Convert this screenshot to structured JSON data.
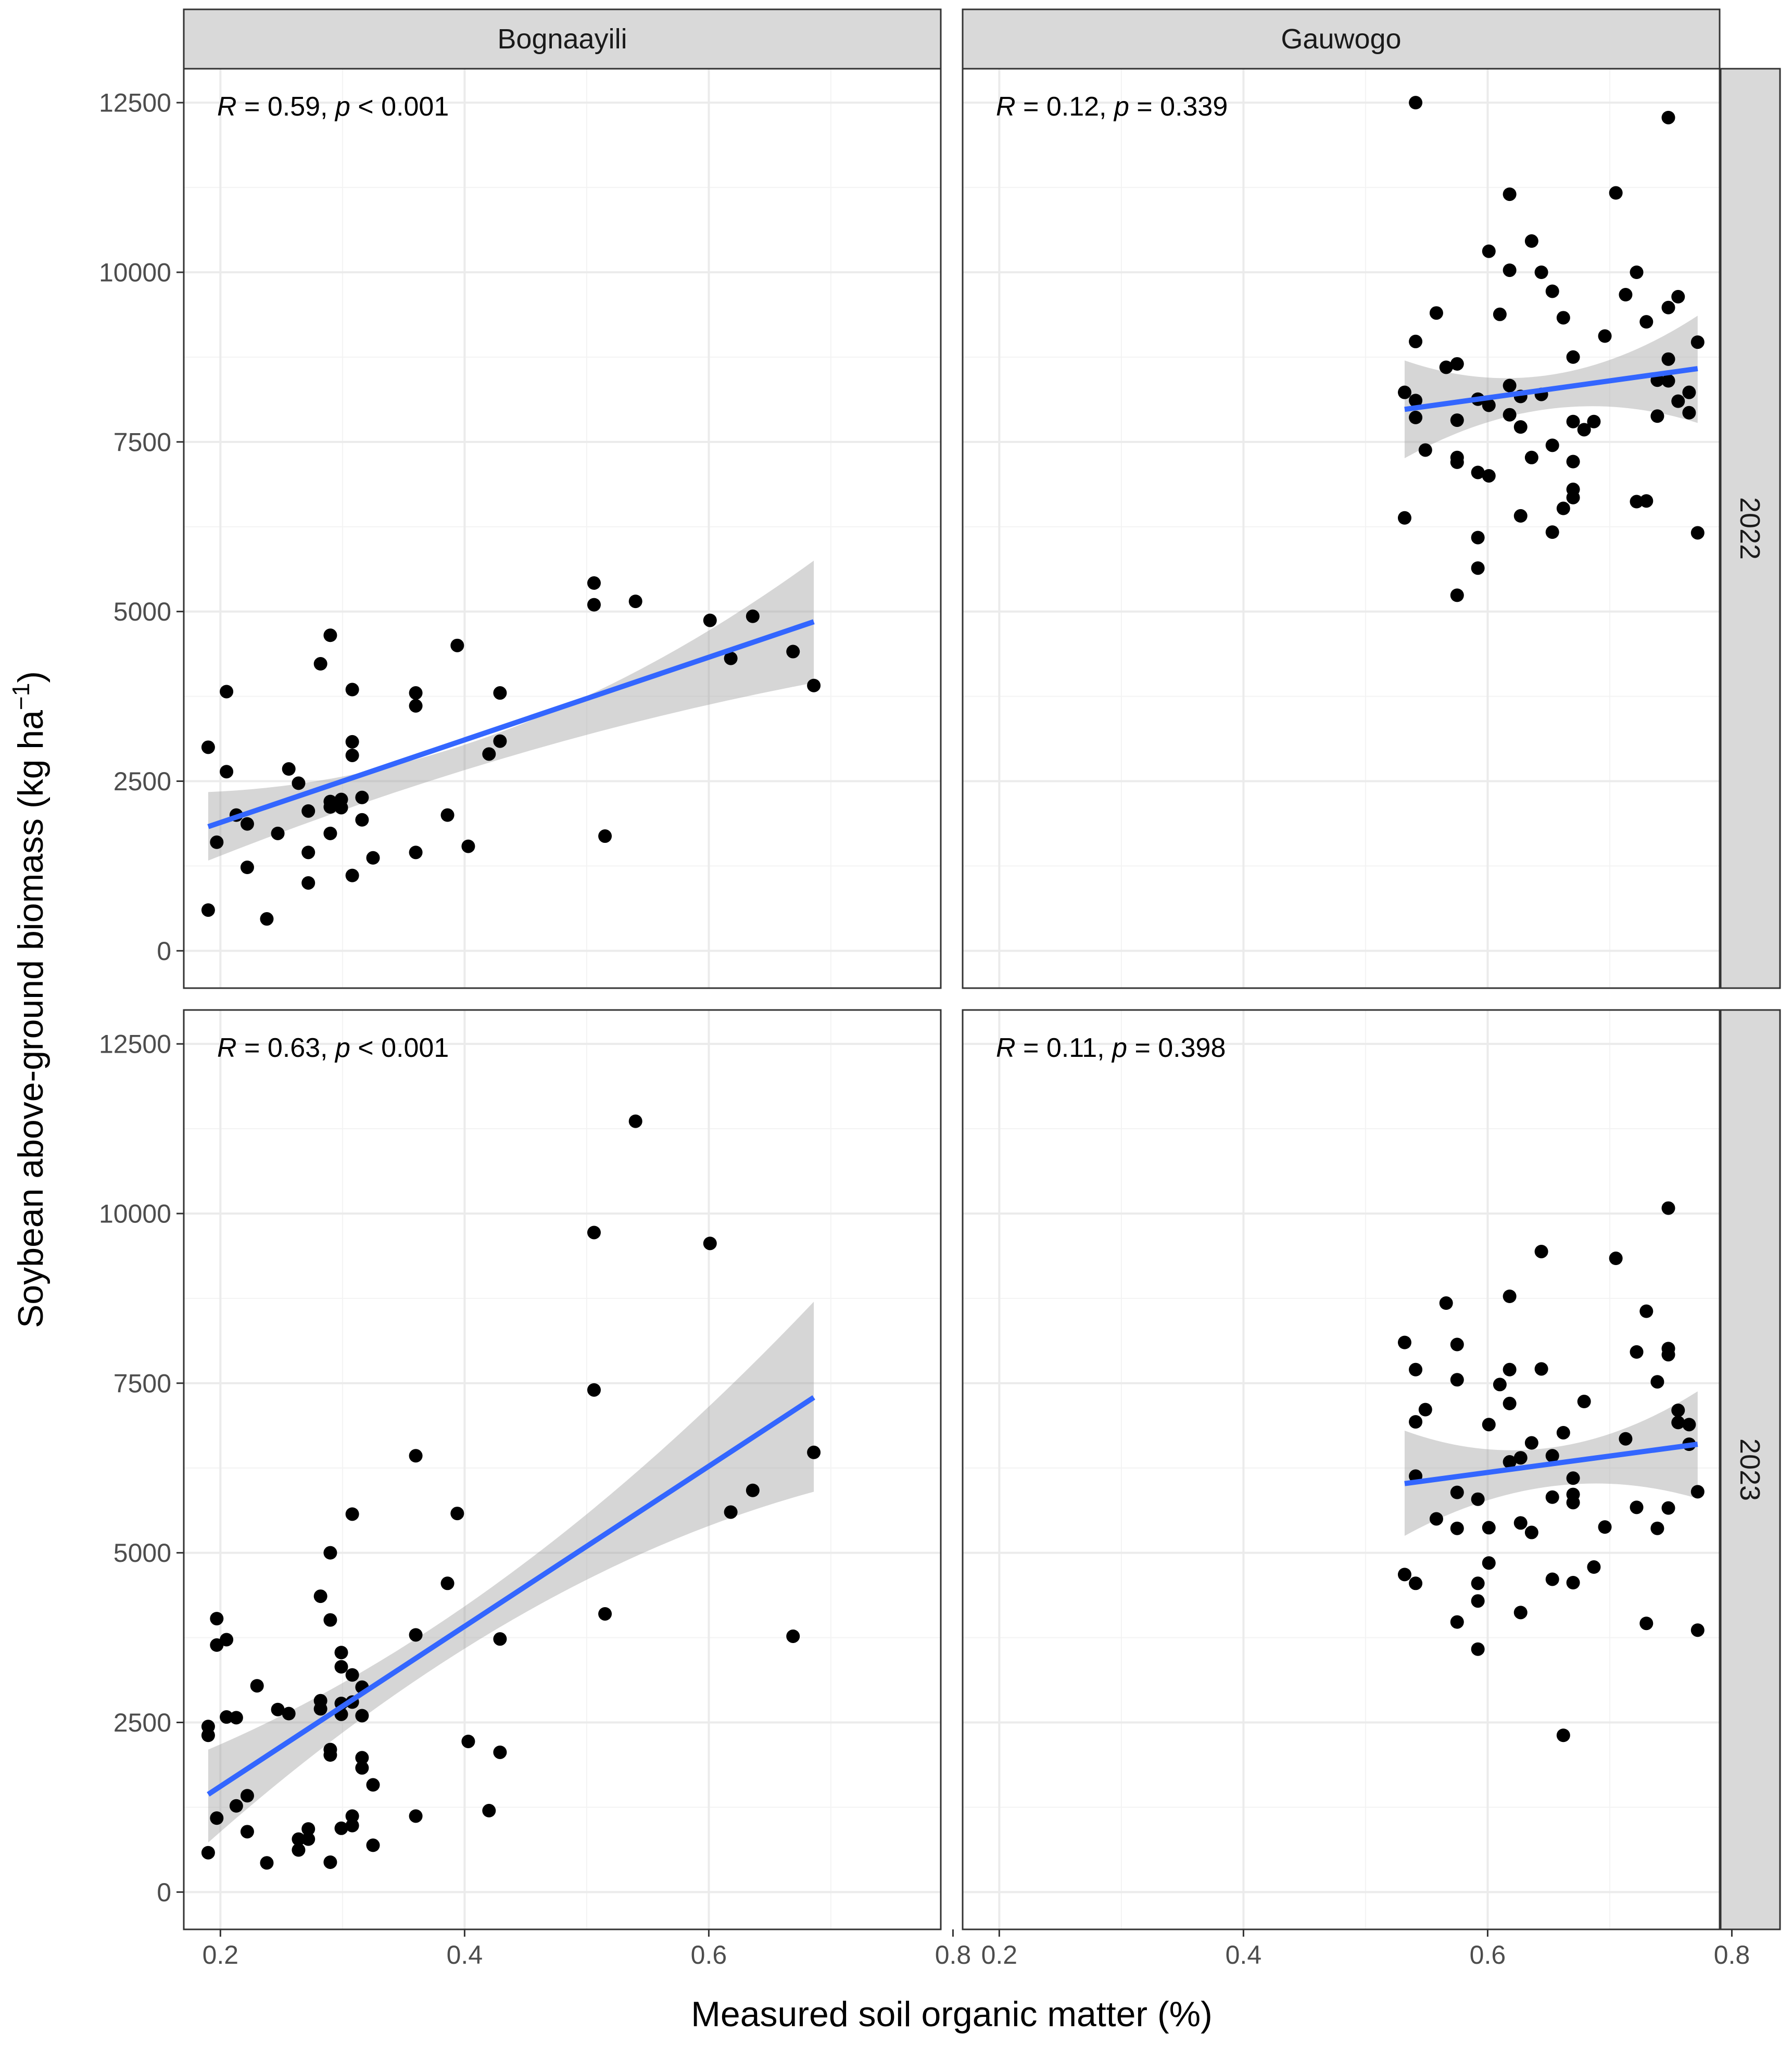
{
  "chart_data": {
    "type": "scatter",
    "xlabel": "Measured soil organic matter (%)",
    "ylabel_main": "Soybean above-ground biomass (kg ha",
    "ylabel_sup": "−1",
    "ylabel_close": ")",
    "xlim": [
      0.17,
      0.79
    ],
    "ylim": [
      -550,
      13000
    ],
    "x_ticks": [
      0.2,
      0.4,
      0.6,
      0.8
    ],
    "x_tick_labels": [
      "0.2",
      "0.4",
      "0.6",
      "0.8"
    ],
    "y_ticks": [
      0,
      2500,
      5000,
      7500,
      10000,
      12500
    ],
    "y_tick_labels": [
      "0",
      "2500",
      "5000",
      "7500",
      "10000",
      "12500"
    ],
    "columns": [
      "Bognaayili",
      "Gauwogo"
    ],
    "rows": [
      "2022",
      "2023"
    ],
    "colors": {
      "fit_line": "#3366FF",
      "points": "#000000",
      "band": "#999999",
      "strip": "#D9D9D9"
    },
    "panels": [
      {
        "site": "Bognaayili",
        "year": "2022",
        "stat": {
          "R": "0.59",
          "p_sign": "<",
          "p": "0.001"
        },
        "fit": {
          "x0": 0.19,
          "y0": 1830,
          "x1": 0.686,
          "y1": 4850
        },
        "band": {
          "lo0": 1330,
          "hi0": 2340,
          "loMid": 2870,
          "hiMid": 3280,
          "lo1": 3950,
          "hi1": 5750
        },
        "points": [
          [
            0.19,
            3000
          ],
          [
            0.197,
            1600
          ],
          [
            0.205,
            3820
          ],
          [
            0.205,
            2640
          ],
          [
            0.213,
            2000
          ],
          [
            0.222,
            1870
          ],
          [
            0.222,
            1230
          ],
          [
            0.238,
            470
          ],
          [
            0.247,
            1730
          ],
          [
            0.256,
            2680
          ],
          [
            0.264,
            2470
          ],
          [
            0.272,
            2060
          ],
          [
            0.272,
            1450
          ],
          [
            0.272,
            1000
          ],
          [
            0.282,
            4230
          ],
          [
            0.29,
            4650
          ],
          [
            0.29,
            2200
          ],
          [
            0.29,
            2120
          ],
          [
            0.29,
            1730
          ],
          [
            0.299,
            2230
          ],
          [
            0.299,
            2110
          ],
          [
            0.308,
            3850
          ],
          [
            0.308,
            3080
          ],
          [
            0.308,
            2880
          ],
          [
            0.308,
            1110
          ],
          [
            0.316,
            1930
          ],
          [
            0.316,
            2260
          ],
          [
            0.325,
            1370
          ],
          [
            0.36,
            3800
          ],
          [
            0.36,
            3610
          ],
          [
            0.36,
            1450
          ],
          [
            0.386,
            2000
          ],
          [
            0.394,
            4500
          ],
          [
            0.403,
            1540
          ],
          [
            0.42,
            2900
          ],
          [
            0.429,
            3800
          ],
          [
            0.429,
            3090
          ],
          [
            0.506,
            5420
          ],
          [
            0.506,
            5100
          ],
          [
            0.515,
            1690
          ],
          [
            0.54,
            5150
          ],
          [
            0.601,
            4870
          ],
          [
            0.618,
            4310
          ],
          [
            0.636,
            4930
          ],
          [
            0.669,
            4410
          ],
          [
            0.686,
            3910
          ],
          [
            0.19,
            600
          ]
        ]
      },
      {
        "site": "Gauwogo",
        "year": "2022",
        "stat": {
          "R": "0.12",
          "p_sign": "=",
          "p": "0.339"
        },
        "fit": {
          "x0": 0.532,
          "y0": 7980,
          "x1": 0.772,
          "y1": 8580
        },
        "band": {
          "lo0": 7260,
          "hi0": 8700,
          "loMid": 7990,
          "hiMid": 8490,
          "lo1": 7780,
          "hi1": 9360
        },
        "points": [
          [
            0.532,
            6380
          ],
          [
            0.532,
            8230
          ],
          [
            0.541,
            8980
          ],
          [
            0.541,
            8110
          ],
          [
            0.541,
            7860
          ],
          [
            0.541,
            12500
          ],
          [
            0.549,
            7380
          ],
          [
            0.558,
            9400
          ],
          [
            0.566,
            8600
          ],
          [
            0.575,
            8650
          ],
          [
            0.575,
            7270
          ],
          [
            0.575,
            7200
          ],
          [
            0.575,
            5240
          ],
          [
            0.575,
            7820
          ],
          [
            0.592,
            8130
          ],
          [
            0.592,
            7050
          ],
          [
            0.592,
            6090
          ],
          [
            0.592,
            5640
          ],
          [
            0.601,
            10310
          ],
          [
            0.601,
            8040
          ],
          [
            0.601,
            7000
          ],
          [
            0.61,
            9380
          ],
          [
            0.618,
            11150
          ],
          [
            0.618,
            10030
          ],
          [
            0.618,
            8330
          ],
          [
            0.618,
            7900
          ],
          [
            0.627,
            8170
          ],
          [
            0.627,
            7720
          ],
          [
            0.627,
            6410
          ],
          [
            0.636,
            10460
          ],
          [
            0.636,
            7270
          ],
          [
            0.644,
            10000
          ],
          [
            0.644,
            8200
          ],
          [
            0.653,
            9720
          ],
          [
            0.653,
            7450
          ],
          [
            0.653,
            6170
          ],
          [
            0.662,
            9330
          ],
          [
            0.662,
            6520
          ],
          [
            0.67,
            8750
          ],
          [
            0.67,
            6800
          ],
          [
            0.67,
            7800
          ],
          [
            0.67,
            7210
          ],
          [
            0.67,
            6680
          ],
          [
            0.679,
            7680
          ],
          [
            0.687,
            7800
          ],
          [
            0.696,
            9060
          ],
          [
            0.705,
            11170
          ],
          [
            0.713,
            9670
          ],
          [
            0.722,
            10000
          ],
          [
            0.722,
            6620
          ],
          [
            0.73,
            9270
          ],
          [
            0.73,
            6630
          ],
          [
            0.739,
            8410
          ],
          [
            0.739,
            7880
          ],
          [
            0.748,
            12280
          ],
          [
            0.748,
            9480
          ],
          [
            0.748,
            8720
          ],
          [
            0.748,
            8400
          ],
          [
            0.756,
            9640
          ],
          [
            0.756,
            8100
          ],
          [
            0.765,
            8230
          ],
          [
            0.765,
            7930
          ],
          [
            0.772,
            8970
          ],
          [
            0.772,
            6160
          ]
        ]
      },
      {
        "site": "Bognaayili",
        "year": "2023",
        "stat": {
          "R": "0.63",
          "p_sign": "<",
          "p": "0.001"
        },
        "fit": {
          "x0": 0.19,
          "y0": 1440,
          "x1": 0.686,
          "y1": 7290
        },
        "band": {
          "lo0": 730,
          "hi0": 2100,
          "loMid": 4000,
          "hiMid": 4700,
          "lo1": 5900,
          "hi1": 8700
        },
        "points": [
          [
            0.19,
            2440
          ],
          [
            0.19,
            2310
          ],
          [
            0.19,
            580
          ],
          [
            0.197,
            4030
          ],
          [
            0.197,
            3640
          ],
          [
            0.197,
            1090
          ],
          [
            0.205,
            3720
          ],
          [
            0.205,
            2580
          ],
          [
            0.213,
            2570
          ],
          [
            0.213,
            1270
          ],
          [
            0.222,
            1420
          ],
          [
            0.222,
            890
          ],
          [
            0.23,
            3040
          ],
          [
            0.238,
            430
          ],
          [
            0.247,
            2690
          ],
          [
            0.256,
            2630
          ],
          [
            0.264,
            780
          ],
          [
            0.264,
            620
          ],
          [
            0.272,
            930
          ],
          [
            0.272,
            780
          ],
          [
            0.282,
            4360
          ],
          [
            0.282,
            2820
          ],
          [
            0.282,
            2700
          ],
          [
            0.29,
            5000
          ],
          [
            0.29,
            4010
          ],
          [
            0.29,
            2100
          ],
          [
            0.29,
            2020
          ],
          [
            0.29,
            440
          ],
          [
            0.299,
            3530
          ],
          [
            0.299,
            3320
          ],
          [
            0.299,
            2780
          ],
          [
            0.299,
            2620
          ],
          [
            0.299,
            940
          ],
          [
            0.308,
            5570
          ],
          [
            0.308,
            3200
          ],
          [
            0.308,
            2800
          ],
          [
            0.308,
            1120
          ],
          [
            0.308,
            980
          ],
          [
            0.316,
            3020
          ],
          [
            0.316,
            2600
          ],
          [
            0.316,
            1980
          ],
          [
            0.316,
            1830
          ],
          [
            0.325,
            1580
          ],
          [
            0.325,
            690
          ],
          [
            0.36,
            6430
          ],
          [
            0.36,
            3790
          ],
          [
            0.36,
            1120
          ],
          [
            0.386,
            4550
          ],
          [
            0.394,
            5580
          ],
          [
            0.403,
            2220
          ],
          [
            0.42,
            1200
          ],
          [
            0.429,
            3730
          ],
          [
            0.429,
            2060
          ],
          [
            0.506,
            9720
          ],
          [
            0.506,
            7400
          ],
          [
            0.515,
            4100
          ],
          [
            0.54,
            11360
          ],
          [
            0.601,
            9560
          ],
          [
            0.618,
            5600
          ],
          [
            0.636,
            5920
          ],
          [
            0.669,
            3770
          ],
          [
            0.686,
            6480
          ]
        ]
      },
      {
        "site": "Gauwogo",
        "year": "2023",
        "stat": {
          "R": "0.11",
          "p_sign": "=",
          "p": "0.398"
        },
        "fit": {
          "x0": 0.532,
          "y0": 6020,
          "x1": 0.772,
          "y1": 6600
        },
        "band": {
          "lo0": 5250,
          "hi0": 6800,
          "loMid": 5980,
          "hiMid": 6550,
          "lo1": 5800,
          "hi1": 7380
        },
        "points": [
          [
            0.532,
            8100
          ],
          [
            0.532,
            4680
          ],
          [
            0.541,
            7700
          ],
          [
            0.541,
            6930
          ],
          [
            0.541,
            6130
          ],
          [
            0.541,
            4550
          ],
          [
            0.549,
            7110
          ],
          [
            0.558,
            5500
          ],
          [
            0.566,
            8680
          ],
          [
            0.575,
            8070
          ],
          [
            0.575,
            7550
          ],
          [
            0.575,
            5890
          ],
          [
            0.575,
            5360
          ],
          [
            0.575,
            3980
          ],
          [
            0.592,
            5790
          ],
          [
            0.592,
            4550
          ],
          [
            0.592,
            4290
          ],
          [
            0.592,
            3580
          ],
          [
            0.601,
            6890
          ],
          [
            0.601,
            5370
          ],
          [
            0.601,
            4850
          ],
          [
            0.61,
            7480
          ],
          [
            0.618,
            8780
          ],
          [
            0.618,
            7700
          ],
          [
            0.618,
            7200
          ],
          [
            0.618,
            6340
          ],
          [
            0.627,
            6400
          ],
          [
            0.627,
            5440
          ],
          [
            0.627,
            4120
          ],
          [
            0.636,
            6620
          ],
          [
            0.636,
            5300
          ],
          [
            0.644,
            9440
          ],
          [
            0.644,
            7710
          ],
          [
            0.653,
            6430
          ],
          [
            0.653,
            5820
          ],
          [
            0.653,
            4610
          ],
          [
            0.662,
            6770
          ],
          [
            0.662,
            2310
          ],
          [
            0.67,
            6100
          ],
          [
            0.67,
            5860
          ],
          [
            0.67,
            5740
          ],
          [
            0.67,
            4560
          ],
          [
            0.679,
            7230
          ],
          [
            0.687,
            4790
          ],
          [
            0.696,
            5380
          ],
          [
            0.705,
            9340
          ],
          [
            0.713,
            6680
          ],
          [
            0.722,
            7960
          ],
          [
            0.722,
            5670
          ],
          [
            0.73,
            8560
          ],
          [
            0.73,
            3960
          ],
          [
            0.739,
            7520
          ],
          [
            0.739,
            5360
          ],
          [
            0.748,
            10080
          ],
          [
            0.748,
            8010
          ],
          [
            0.748,
            7920
          ],
          [
            0.748,
            5660
          ],
          [
            0.756,
            7100
          ],
          [
            0.756,
            6920
          ],
          [
            0.765,
            6890
          ],
          [
            0.765,
            6600
          ],
          [
            0.772,
            5900
          ],
          [
            0.772,
            3860
          ]
        ]
      }
    ]
  }
}
